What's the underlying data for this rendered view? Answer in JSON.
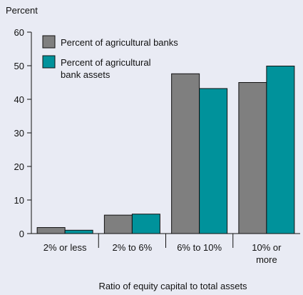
{
  "chart_data": {
    "type": "bar",
    "ylabel": "Percent",
    "xlabel": "Ratio of equity capital to total assets",
    "ylim": [
      0,
      60
    ],
    "yticks": [
      0,
      10,
      20,
      30,
      40,
      50,
      60
    ],
    "categories": [
      [
        "2% or less"
      ],
      [
        "2% to 6%"
      ],
      [
        "6% to 10%"
      ],
      [
        "10% or",
        "more"
      ]
    ],
    "series": [
      {
        "name": "Percent of agricultural banks",
        "legend_lines": [
          "Percent of agricultural banks"
        ],
        "color": "#7f7f7f",
        "values": [
          1.8,
          5.5,
          47.6,
          45.0
        ]
      },
      {
        "name": "Percent of agricultural bank assets",
        "legend_lines": [
          "Percent of agricultural",
          "bank assets"
        ],
        "color": "#00929b",
        "values": [
          1.0,
          5.8,
          43.2,
          49.9
        ]
      }
    ],
    "legend_position": "top-left",
    "grid": false
  }
}
